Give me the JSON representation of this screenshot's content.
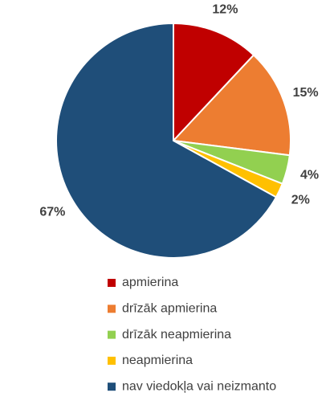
{
  "chart_data": {
    "type": "pie",
    "categories": [
      "apmierina",
      "drīzāk apmierina",
      "drīzāk neapmierina",
      "neapmierina",
      "nav viedokļa vai neizmanto"
    ],
    "values": [
      12,
      15,
      4,
      2,
      67
    ],
    "value_labels": [
      "12%",
      "15%",
      "4%",
      "2%",
      "67%"
    ],
    "colors": [
      "#c00000",
      "#ed7d31",
      "#92d050",
      "#ffc000",
      "#1f4e79"
    ],
    "legend": "bottom"
  }
}
